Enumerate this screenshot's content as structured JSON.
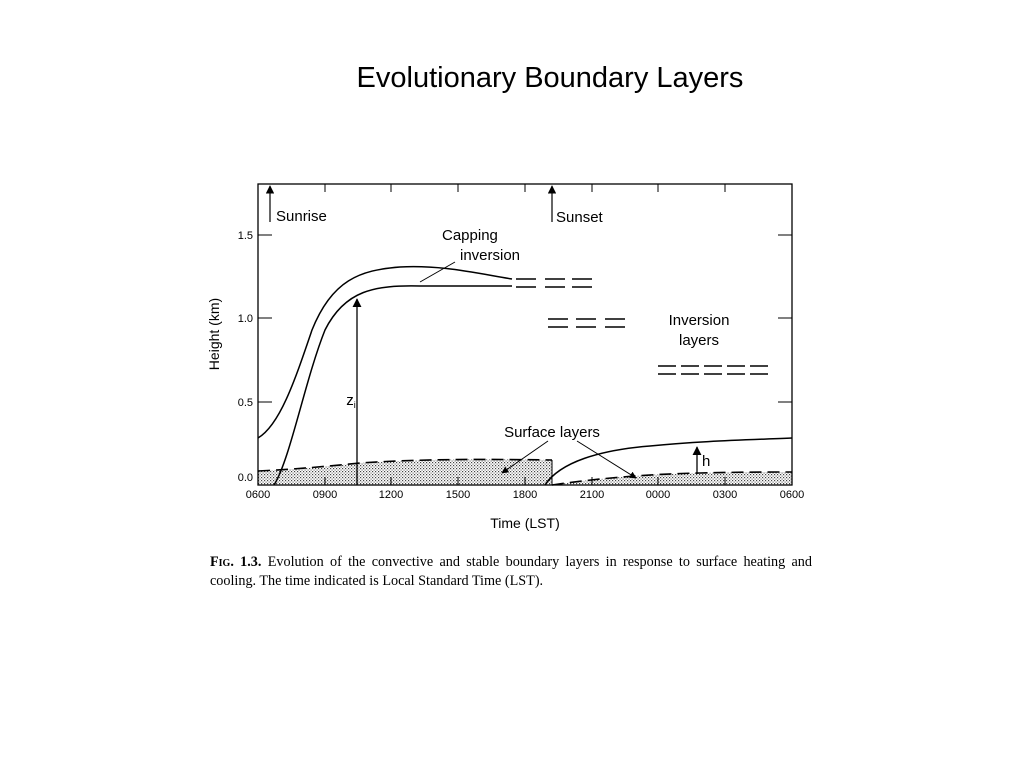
{
  "slide": {
    "title": "Evolutionary Boundary Layers"
  },
  "figure": {
    "x_axis": {
      "title": "Time (LST)",
      "tick_labels": [
        "0600",
        "0900",
        "1200",
        "1500",
        "1800",
        "2100",
        "0000",
        "0300",
        "0600"
      ]
    },
    "y_axis": {
      "title": "Height (km)",
      "tick_labels": [
        "0.0",
        "0.5",
        "1.0",
        "1.5"
      ],
      "tick_values": [
        0.0,
        0.5,
        1.0,
        1.5
      ],
      "range": [
        0.0,
        1.8
      ]
    },
    "annotations": {
      "sunrise": "Sunrise",
      "sunset": "Sunset",
      "capping_line1": "Capping",
      "capping_line2": "inversion",
      "inversion_line1": "Inversion",
      "inversion_line2": "layers",
      "surface_layers": "Surface layers",
      "zi": "z",
      "zi_sub": "i",
      "h": "h"
    },
    "caption": {
      "label": "Fig. 1.3.",
      "text": "Evolution of the convective and stable boundary layers in response to surface heating and cooling. The time indicated is Local Standard Time (LST)."
    }
  }
}
